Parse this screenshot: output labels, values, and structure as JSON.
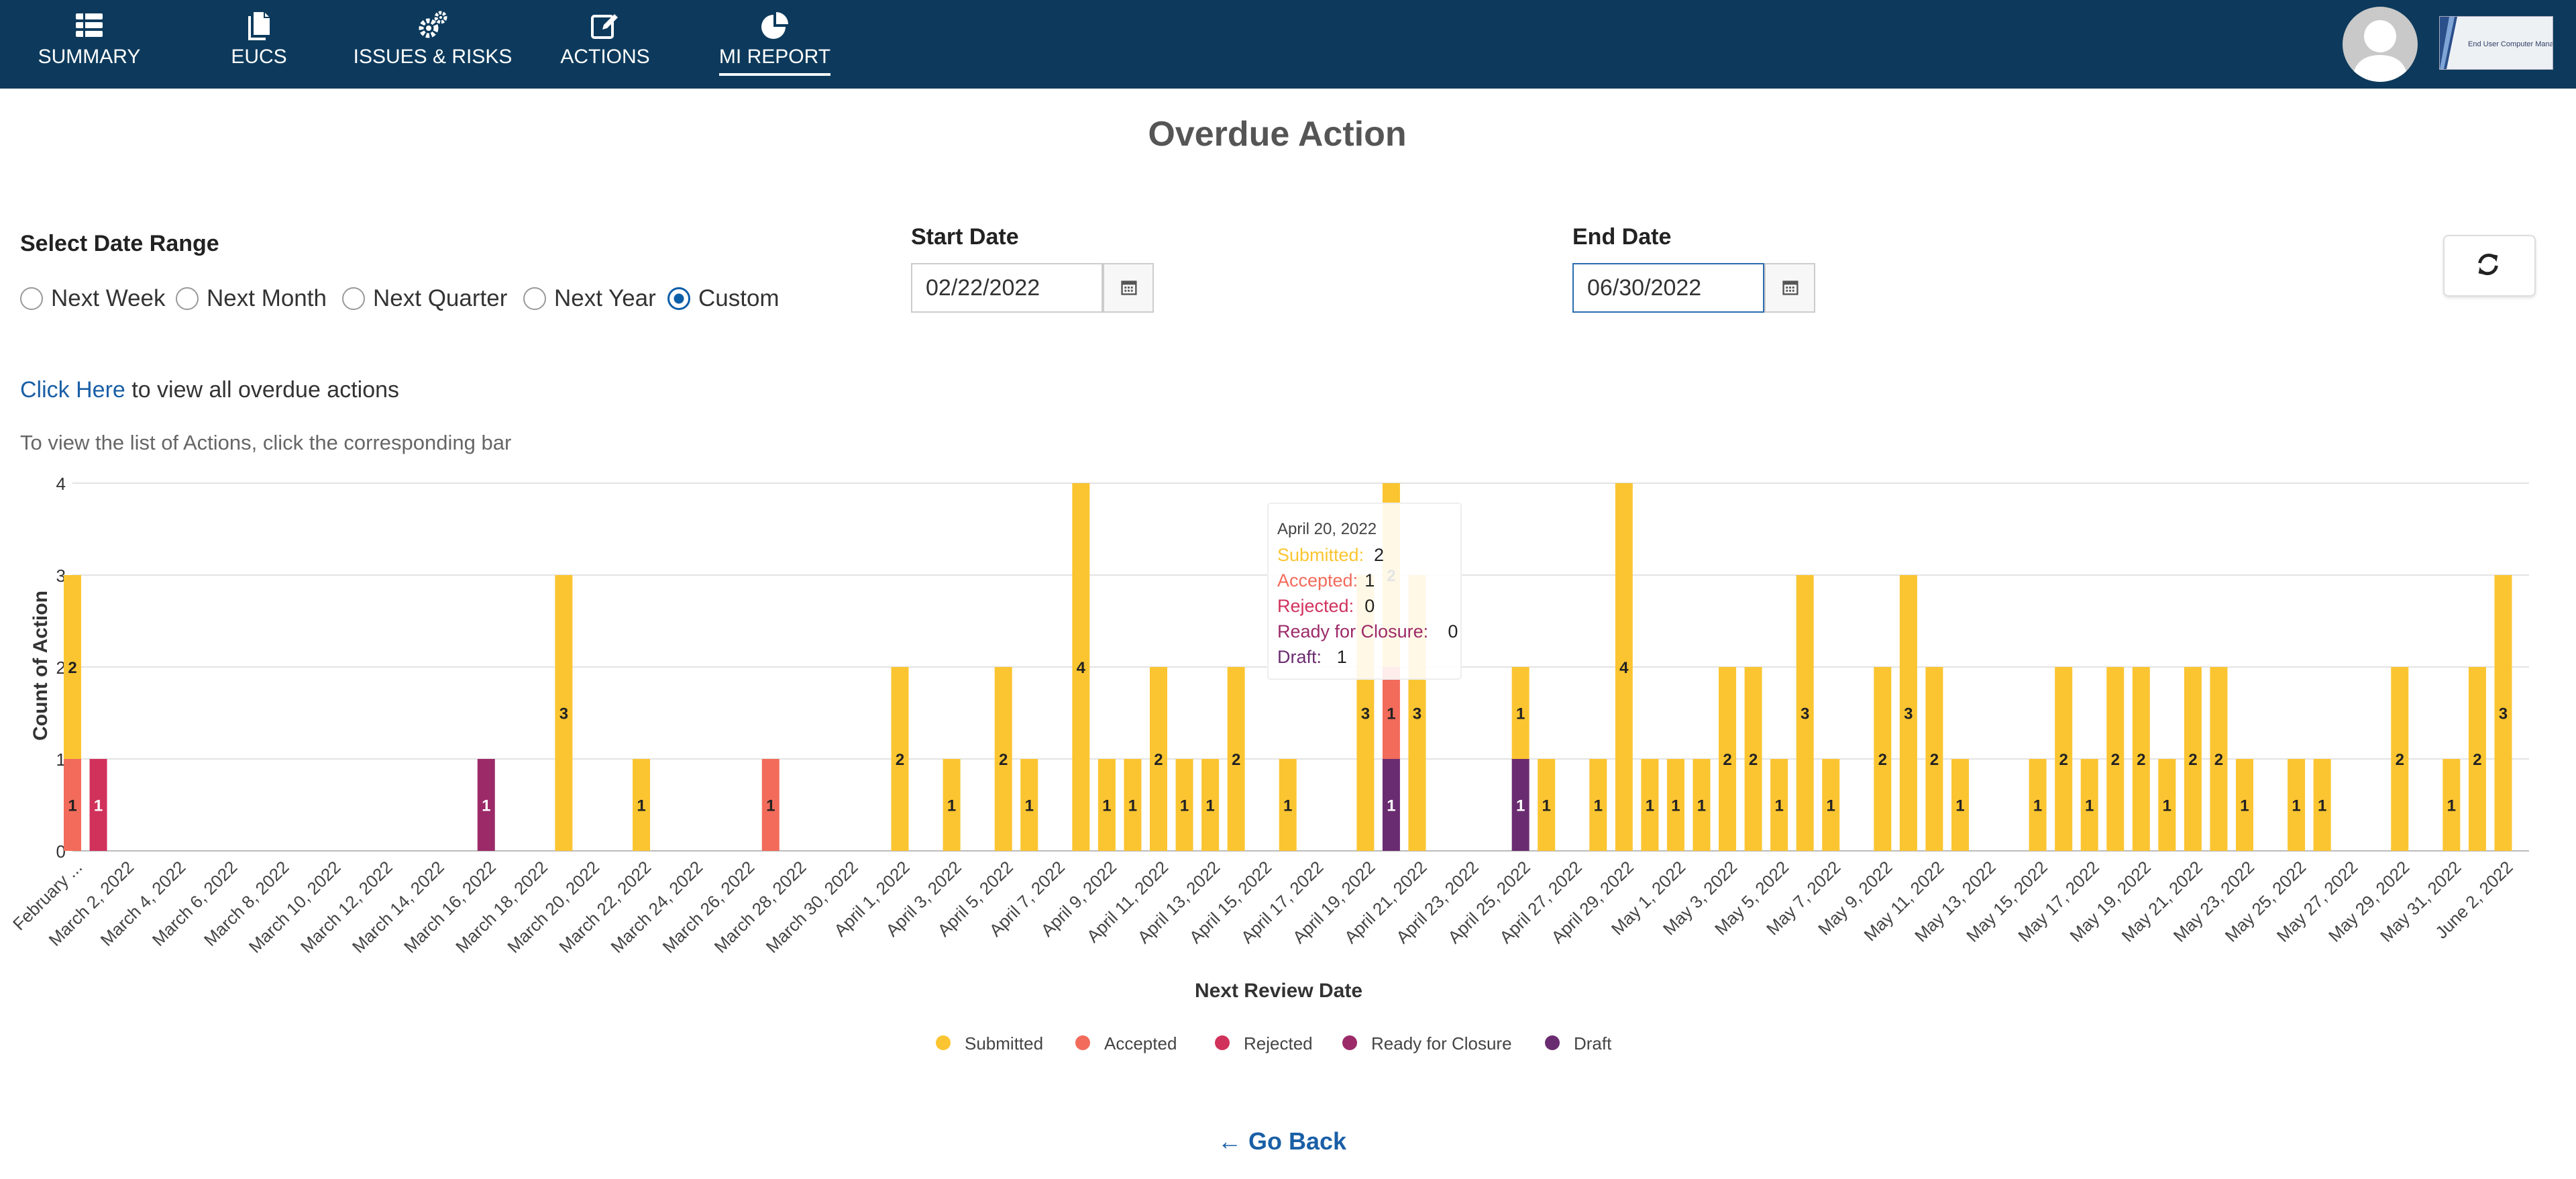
{
  "nav": {
    "items": [
      {
        "label": "SUMMARY",
        "icon": "table-icon"
      },
      {
        "label": "EUCS",
        "icon": "documents-icon"
      },
      {
        "label": "ISSUES & RISKS",
        "icon": "gears-icon"
      },
      {
        "label": "ACTIONS",
        "icon": "edit-icon"
      },
      {
        "label": "MI REPORT",
        "icon": "pie-chart-icon",
        "active": true
      }
    ],
    "logo_text": "End User Computer Manager"
  },
  "page": {
    "title": "Overdue Action"
  },
  "filters": {
    "range_label": "Select Date Range",
    "options": [
      "Next Week",
      "Next Month",
      "Next Quarter",
      "Next Year",
      "Custom"
    ],
    "selected": "Custom",
    "start_label": "Start Date",
    "start_value": "02/22/2022",
    "end_label": "End Date",
    "end_value": "06/30/2022"
  },
  "links": {
    "click_here": "Click Here",
    "click_suffix": " to view all overdue actions",
    "hint": "To view the list of Actions, click the corresponding bar",
    "go_back": "Go Back"
  },
  "colors": {
    "nav_bg": "#0d3a5c",
    "submitted": "#fbc531",
    "accepted": "#f26b5b",
    "rejected": "#d1325c",
    "ready": "#9c2a68",
    "draft": "#6a2c70",
    "link": "#1a5fa6"
  },
  "tooltip": {
    "date": "April 20, 2022",
    "rows": [
      {
        "label": "Submitted",
        "value": "2"
      },
      {
        "label": "Accepted",
        "value": "1"
      },
      {
        "label": "Rejected",
        "value": "0"
      },
      {
        "label": "Ready for Closure",
        "value": "0"
      },
      {
        "label": "Draft",
        "value": "1"
      }
    ]
  },
  "chart_data": {
    "type": "bar",
    "stacked": true,
    "ylabel": "Count of Action",
    "xlabel": "Next Review Date",
    "ylim": [
      0,
      4
    ],
    "yticks": [
      0,
      1,
      2,
      3,
      4
    ],
    "legend_position": "bottom",
    "series_names": [
      "Submitted",
      "Accepted",
      "Rejected",
      "Ready for Closure",
      "Draft"
    ],
    "x_tick_labels": [
      "February ...",
      "March 2, 2022",
      "March 4, 2022",
      "March 6, 2022",
      "March 8, 2022",
      "March 10, 2022",
      "March 12, 2022",
      "March 14, 2022",
      "March 16, 2022",
      "March 18, 2022",
      "March 20, 2022",
      "March 22, 2022",
      "March 24, 2022",
      "March 26, 2022",
      "March 28, 2022",
      "March 30, 2022",
      "April 1, 2022",
      "April 3, 2022",
      "April 5, 2022",
      "April 7, 2022",
      "April 9, 2022",
      "April 11, 2022",
      "April 13, 2022",
      "April 15, 2022",
      "April 17, 2022",
      "April 19, 2022",
      "April 21, 2022",
      "April 23, 2022",
      "April 25, 2022",
      "April 27, 2022",
      "April 29, 2022",
      "May 1, 2022",
      "May 3, 2022",
      "May 5, 2022",
      "May 7, 2022",
      "May 9, 2022",
      "May 11, 2022",
      "May 13, 2022",
      "May 15, 2022",
      "May 17, 2022",
      "May 19, 2022",
      "May 21, 2022",
      "May 23, 2022",
      "May 25, 2022",
      "May 27, 2022",
      "May 29, 2022",
      "May 31, 2022",
      "June 2, 2022"
    ],
    "bars": [
      {
        "date": "February 28, 2022",
        "s": 2,
        "a": 1,
        "r": 0,
        "c": 0,
        "d": 0
      },
      {
        "date": "March 1, 2022",
        "s": 0,
        "a": 0,
        "r": 1,
        "c": 0,
        "d": 0
      },
      {
        "date": "March 16, 2022",
        "s": 0,
        "a": 0,
        "r": 0,
        "c": 1,
        "d": 0
      },
      {
        "date": "March 19, 2022",
        "s": 3,
        "a": 0,
        "r": 0,
        "c": 0,
        "d": 0
      },
      {
        "date": "March 22, 2022",
        "s": 1,
        "a": 0,
        "r": 0,
        "c": 0,
        "d": 0
      },
      {
        "date": "March 27, 2022",
        "s": 0,
        "a": 1,
        "r": 0,
        "c": 0,
        "d": 0
      },
      {
        "date": "April 1, 2022",
        "s": 2,
        "a": 0,
        "r": 0,
        "c": 0,
        "d": 0
      },
      {
        "date": "April 3, 2022",
        "s": 1,
        "a": 0,
        "r": 0,
        "c": 0,
        "d": 0
      },
      {
        "date": "April 5, 2022",
        "s": 2,
        "a": 0,
        "r": 0,
        "c": 0,
        "d": 0
      },
      {
        "date": "April 6, 2022",
        "s": 1,
        "a": 0,
        "r": 0,
        "c": 0,
        "d": 0
      },
      {
        "date": "April 8, 2022",
        "s": 4,
        "a": 0,
        "r": 0,
        "c": 0,
        "d": 0
      },
      {
        "date": "April 9, 2022",
        "s": 1,
        "a": 0,
        "r": 0,
        "c": 0,
        "d": 0
      },
      {
        "date": "April 10, 2022",
        "s": 1,
        "a": 0,
        "r": 0,
        "c": 0,
        "d": 0
      },
      {
        "date": "April 11, 2022",
        "s": 2,
        "a": 0,
        "r": 0,
        "c": 0,
        "d": 0
      },
      {
        "date": "April 12, 2022",
        "s": 1,
        "a": 0,
        "r": 0,
        "c": 0,
        "d": 0
      },
      {
        "date": "April 13, 2022",
        "s": 1,
        "a": 0,
        "r": 0,
        "c": 0,
        "d": 0
      },
      {
        "date": "April 14, 2022",
        "s": 2,
        "a": 0,
        "r": 0,
        "c": 0,
        "d": 0
      },
      {
        "date": "April 16, 2022",
        "s": 1,
        "a": 0,
        "r": 0,
        "c": 0,
        "d": 0
      },
      {
        "date": "April 19, 2022",
        "s": 3,
        "a": 0,
        "r": 0,
        "c": 0,
        "d": 0
      },
      {
        "date": "April 20, 2022",
        "s": 2,
        "a": 1,
        "r": 0,
        "c": 0,
        "d": 1
      },
      {
        "date": "April 21, 2022",
        "s": 3,
        "a": 0,
        "r": 0,
        "c": 0,
        "d": 0
      },
      {
        "date": "April 25, 2022",
        "s": 1,
        "a": 0,
        "r": 0,
        "c": 0,
        "d": 1
      },
      {
        "date": "April 26, 2022",
        "s": 1,
        "a": 0,
        "r": 0,
        "c": 0,
        "d": 0
      },
      {
        "date": "April 28, 2022",
        "s": 1,
        "a": 0,
        "r": 0,
        "c": 0,
        "d": 0
      },
      {
        "date": "April 29, 2022",
        "s": 4,
        "a": 0,
        "r": 0,
        "c": 0,
        "d": 0
      },
      {
        "date": "April 30, 2022",
        "s": 1,
        "a": 0,
        "r": 0,
        "c": 0,
        "d": 0
      },
      {
        "date": "May 1, 2022",
        "s": 1,
        "a": 0,
        "r": 0,
        "c": 0,
        "d": 0
      },
      {
        "date": "May 2, 2022",
        "s": 1,
        "a": 0,
        "r": 0,
        "c": 0,
        "d": 0
      },
      {
        "date": "May 3, 2022",
        "s": 2,
        "a": 0,
        "r": 0,
        "c": 0,
        "d": 0
      },
      {
        "date": "May 4, 2022",
        "s": 2,
        "a": 0,
        "r": 0,
        "c": 0,
        "d": 0
      },
      {
        "date": "May 5, 2022",
        "s": 1,
        "a": 0,
        "r": 0,
        "c": 0,
        "d": 0
      },
      {
        "date": "May 6, 2022",
        "s": 3,
        "a": 0,
        "r": 0,
        "c": 0,
        "d": 0
      },
      {
        "date": "May 7, 2022",
        "s": 1,
        "a": 0,
        "r": 0,
        "c": 0,
        "d": 0
      },
      {
        "date": "May 9, 2022",
        "s": 2,
        "a": 0,
        "r": 0,
        "c": 0,
        "d": 0
      },
      {
        "date": "May 10, 2022",
        "s": 3,
        "a": 0,
        "r": 0,
        "c": 0,
        "d": 0
      },
      {
        "date": "May 11, 2022",
        "s": 2,
        "a": 0,
        "r": 0,
        "c": 0,
        "d": 0
      },
      {
        "date": "May 12, 2022",
        "s": 1,
        "a": 0,
        "r": 0,
        "c": 0,
        "d": 0
      },
      {
        "date": "May 15, 2022",
        "s": 1,
        "a": 0,
        "r": 0,
        "c": 0,
        "d": 0
      },
      {
        "date": "May 16, 2022",
        "s": 2,
        "a": 0,
        "r": 0,
        "c": 0,
        "d": 0
      },
      {
        "date": "May 17, 2022",
        "s": 1,
        "a": 0,
        "r": 0,
        "c": 0,
        "d": 0
      },
      {
        "date": "May 18, 2022",
        "s": 2,
        "a": 0,
        "r": 0,
        "c": 0,
        "d": 0
      },
      {
        "date": "May 19, 2022",
        "s": 2,
        "a": 0,
        "r": 0,
        "c": 0,
        "d": 0
      },
      {
        "date": "May 20, 2022",
        "s": 1,
        "a": 0,
        "r": 0,
        "c": 0,
        "d": 0
      },
      {
        "date": "May 21, 2022",
        "s": 2,
        "a": 0,
        "r": 0,
        "c": 0,
        "d": 0
      },
      {
        "date": "May 22, 2022",
        "s": 2,
        "a": 0,
        "r": 0,
        "c": 0,
        "d": 0
      },
      {
        "date": "May 23, 2022",
        "s": 1,
        "a": 0,
        "r": 0,
        "c": 0,
        "d": 0
      },
      {
        "date": "May 25, 2022",
        "s": 1,
        "a": 0,
        "r": 0,
        "c": 0,
        "d": 0
      },
      {
        "date": "May 26, 2022",
        "s": 1,
        "a": 0,
        "r": 0,
        "c": 0,
        "d": 0
      },
      {
        "date": "May 29, 2022",
        "s": 2,
        "a": 0,
        "r": 0,
        "c": 0,
        "d": 0
      },
      {
        "date": "May 31, 2022",
        "s": 1,
        "a": 0,
        "r": 0,
        "c": 0,
        "d": 0
      },
      {
        "date": "June 1, 2022",
        "s": 2,
        "a": 0,
        "r": 0,
        "c": 0,
        "d": 0
      },
      {
        "date": "June 2, 2022",
        "s": 3,
        "a": 0,
        "r": 0,
        "c": 0,
        "d": 0
      }
    ]
  }
}
